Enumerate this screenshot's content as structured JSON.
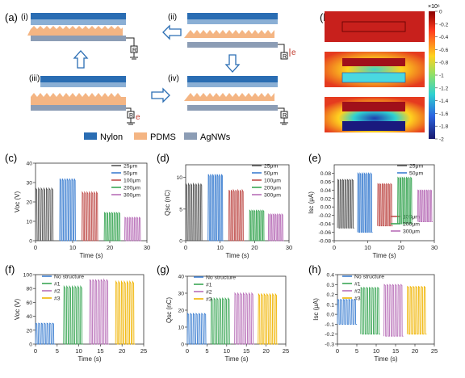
{
  "panel_labels": {
    "a": "(a)",
    "b": "(b)",
    "c": "(c)",
    "d": "(d)",
    "e": "(e)",
    "f": "(f)",
    "g": "(g)",
    "h": "(h)"
  },
  "schematic": {
    "steps": [
      "(i)",
      "(ii)",
      "(iii)",
      "(iv)"
    ],
    "resistor_label": "R",
    "electron_label": "e",
    "legend": [
      {
        "name": "Nylon",
        "color": "#2a6db3"
      },
      {
        "name": "PDMS",
        "color": "#f4b583"
      },
      {
        "name": "AgNWs",
        "color": "#8c9db5"
      }
    ]
  },
  "colorbar": {
    "exponent": "×10⁶",
    "ticks": [
      "0",
      "-0.2",
      "-0.4",
      "-0.6",
      "-0.8",
      "-1",
      "-1.2",
      "-1.4",
      "-1.6",
      "-1.8",
      "-2"
    ]
  },
  "colors": {
    "c1": "#555555",
    "c2": "#3d7fd1",
    "c3": "#c0504d",
    "c4": "#3aa655",
    "c5": "#b86fb8",
    "ns": "#3d7fd1",
    "s1": "#3aa655",
    "s2": "#b86fb8",
    "s3": "#f0b400"
  },
  "chart_data": [
    {
      "id": "c",
      "type": "line",
      "ylabel": "Voc (V)",
      "xlabel": "Time (s)",
      "xlim": [
        0,
        30
      ],
      "ylim": [
        0,
        40
      ],
      "xticks": [
        "0",
        "10",
        "20",
        "30"
      ],
      "yticks": [
        "0",
        "10",
        "20",
        "30",
        "40"
      ],
      "series": [
        {
          "name": "25μm",
          "x_range": [
            0,
            5
          ],
          "low": 0,
          "high": 27
        },
        {
          "name": "50μm",
          "x_range": [
            6.5,
            11
          ],
          "low": 0,
          "high": 32
        },
        {
          "name": "100μm",
          "x_range": [
            12.5,
            17
          ],
          "low": 0,
          "high": 25
        },
        {
          "name": "200μm",
          "x_range": [
            18.5,
            23
          ],
          "low": 0,
          "high": 14.5
        },
        {
          "name": "300μm",
          "x_range": [
            24,
            28.5
          ],
          "low": 0,
          "high": 12
        }
      ]
    },
    {
      "id": "d",
      "type": "line",
      "ylabel": "Qsc (nC)",
      "xlabel": "Time (s)",
      "xlim": [
        0,
        30
      ],
      "ylim": [
        0,
        12
      ],
      "xticks": [
        "0",
        "10",
        "20",
        "30"
      ],
      "yticks": [
        "0",
        "5",
        "10"
      ],
      "series": [
        {
          "name": "25μm",
          "x_range": [
            0,
            5
          ],
          "low": 0,
          "high": 9
        },
        {
          "name": "50μm",
          "x_range": [
            6.5,
            11
          ],
          "low": 0,
          "high": 10.5
        },
        {
          "name": "100μm",
          "x_range": [
            12.5,
            17
          ],
          "low": 0,
          "high": 8
        },
        {
          "name": "200μm",
          "x_range": [
            18.5,
            23
          ],
          "low": 0,
          "high": 4.8
        },
        {
          "name": "300μm",
          "x_range": [
            24,
            28.5
          ],
          "low": 0,
          "high": 4.2
        }
      ]
    },
    {
      "id": "e",
      "type": "line",
      "ylabel": "Isc (μA)",
      "xlabel": "Time (s)",
      "xlim": [
        0,
        30
      ],
      "ylim": [
        -0.08,
        0.1
      ],
      "xticks": [
        "0",
        "10",
        "20",
        "30"
      ],
      "yticks": [
        "-0.08",
        "-0.06",
        "-0.04",
        "-0.02",
        "0.00",
        "0.02",
        "0.04",
        "0.06",
        "0.08"
      ],
      "series": [
        {
          "name": "25μm",
          "x_range": [
            1,
            6
          ],
          "low": -0.05,
          "high": 0.065
        },
        {
          "name": "50μm",
          "x_range": [
            7,
            11.5
          ],
          "low": -0.06,
          "high": 0.08
        },
        {
          "name": "100μm",
          "x_range": [
            13,
            17.5
          ],
          "low": -0.045,
          "high": 0.055
        },
        {
          "name": "200μm",
          "x_range": [
            19,
            23.5
          ],
          "low": -0.04,
          "high": 0.07
        },
        {
          "name": "300μm",
          "x_range": [
            25,
            29.5
          ],
          "low": -0.035,
          "high": 0.04
        }
      ]
    },
    {
      "id": "f",
      "type": "line",
      "ylabel": "Voc (V)",
      "xlabel": "Time (s)",
      "xlim": [
        0,
        25
      ],
      "ylim": [
        0,
        100
      ],
      "xticks": [
        "0",
        "5",
        "10",
        "15",
        "20",
        "25"
      ],
      "yticks": [
        "0",
        "20",
        "40",
        "60",
        "80",
        "100"
      ],
      "series": [
        {
          "name": "No structure",
          "x_range": [
            0,
            4.5
          ],
          "low": 0,
          "high": 30
        },
        {
          "name": "#1",
          "x_range": [
            6.5,
            11
          ],
          "low": 0,
          "high": 83
        },
        {
          "name": "#2",
          "x_range": [
            12.5,
            17
          ],
          "low": 0,
          "high": 93
        },
        {
          "name": "#3",
          "x_range": [
            18.5,
            23
          ],
          "low": 0,
          "high": 90
        }
      ]
    },
    {
      "id": "g",
      "type": "line",
      "ylabel": "Qsc (nC)",
      "xlabel": "Time (s)",
      "xlim": [
        0,
        25
      ],
      "ylim": [
        0,
        40
      ],
      "xticks": [
        "0",
        "5",
        "10",
        "15",
        "20",
        "25"
      ],
      "yticks": [
        "0",
        "10",
        "20",
        "30",
        "40"
      ],
      "series": [
        {
          "name": "No structure",
          "x_range": [
            0,
            5
          ],
          "low": 0,
          "high": 18
        },
        {
          "name": "#1",
          "x_range": [
            6,
            11
          ],
          "low": 0,
          "high": 27
        },
        {
          "name": "#2",
          "x_range": [
            12,
            17
          ],
          "low": 0,
          "high": 30
        },
        {
          "name": "#3",
          "x_range": [
            18,
            23
          ],
          "low": 0,
          "high": 29.5
        }
      ]
    },
    {
      "id": "h",
      "type": "line",
      "ylabel": "Isc (μA)",
      "xlabel": "Time (s)",
      "xlim": [
        0,
        25
      ],
      "ylim": [
        -0.3,
        0.4
      ],
      "xticks": [
        "0",
        "5",
        "10",
        "15",
        "20",
        "25"
      ],
      "yticks": [
        "-0.3",
        "-0.2",
        "-0.1",
        "0.0",
        "0.1",
        "0.2",
        "0.3",
        "0.4"
      ],
      "series": [
        {
          "name": "No structure",
          "x_range": [
            0,
            5
          ],
          "low": -0.1,
          "high": 0.15
        },
        {
          "name": "#1",
          "x_range": [
            6,
            11
          ],
          "low": -0.2,
          "high": 0.27
        },
        {
          "name": "#2",
          "x_range": [
            12,
            17
          ],
          "low": -0.22,
          "high": 0.3
        },
        {
          "name": "#3",
          "x_range": [
            18,
            23
          ],
          "low": -0.2,
          "high": 0.28
        }
      ]
    }
  ]
}
